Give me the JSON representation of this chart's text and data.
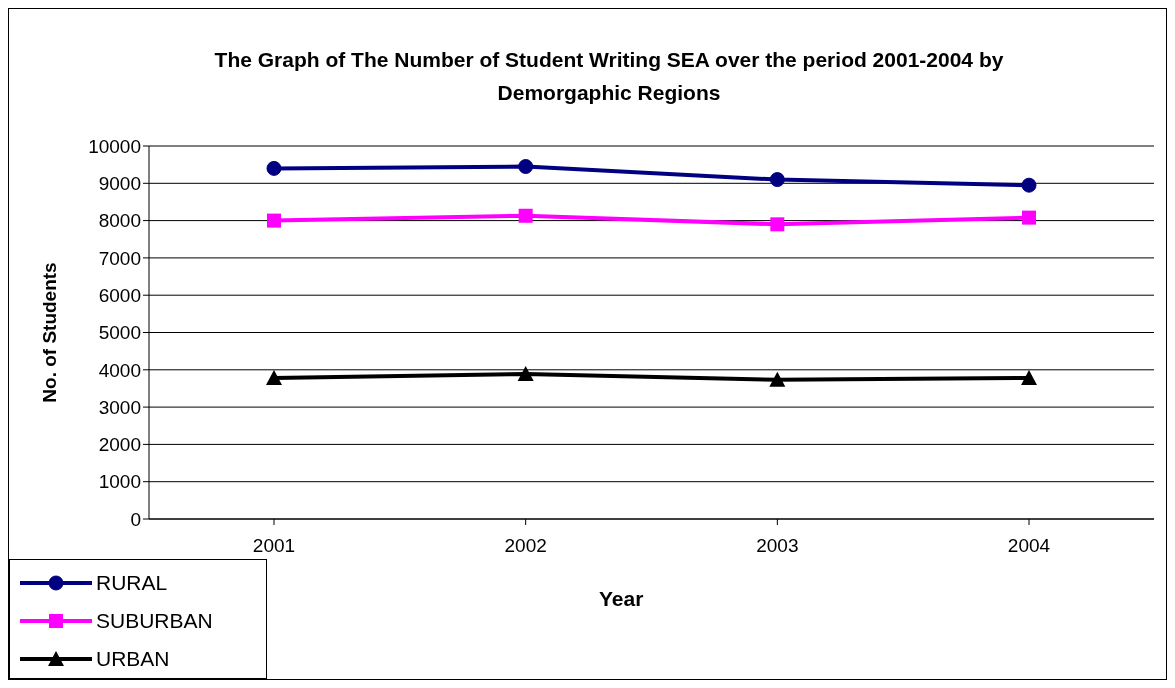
{
  "chart_data": {
    "type": "line",
    "title": "The Graph of The Number of Student Writing SEA over the period 2001-2004  by  Demorgaphic Regions",
    "xlabel": "Year",
    "ylabel": "No. of Students",
    "categories": [
      "2001",
      "2002",
      "2003",
      "2004"
    ],
    "series": [
      {
        "name": "RURAL",
        "color": "#000080",
        "marker": "circle",
        "values": [
          9400,
          9450,
          9100,
          8950
        ]
      },
      {
        "name": "SUBURBAN",
        "color": "#ff00ff",
        "marker": "square",
        "values": [
          8000,
          8130,
          7900,
          8080
        ]
      },
      {
        "name": "URBAN",
        "color": "#000000",
        "marker": "triangle",
        "values": [
          3780,
          3890,
          3730,
          3780
        ]
      }
    ],
    "ylim": [
      0,
      10000
    ],
    "yticks": [
      0,
      1000,
      2000,
      3000,
      4000,
      5000,
      6000,
      7000,
      8000,
      9000,
      10000
    ],
    "grid": "y",
    "legend": "bottom left",
    "line_style": "solid"
  }
}
